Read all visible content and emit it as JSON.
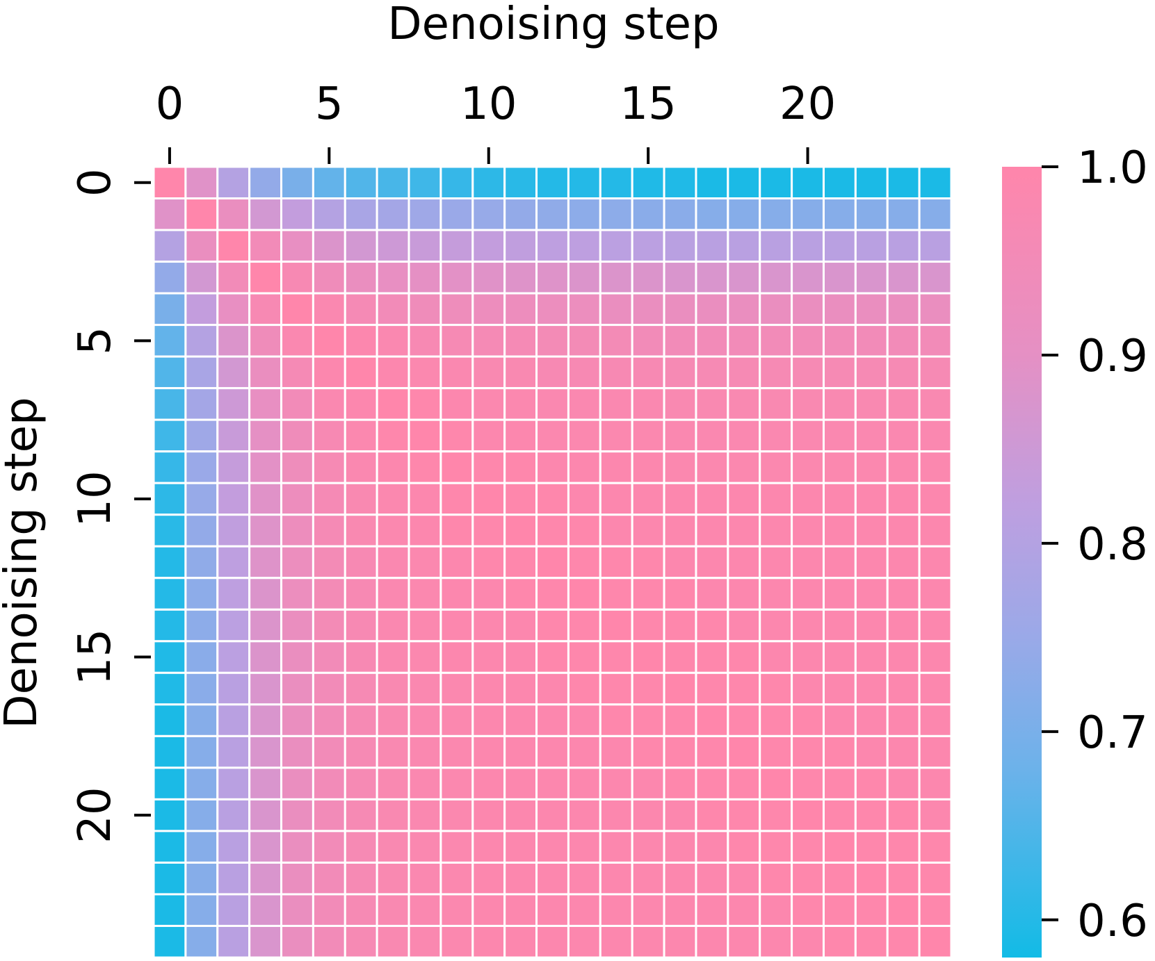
{
  "chart_data": {
    "type": "heatmap",
    "title": "",
    "xlabel": "Denoising step",
    "ylabel": "Denoising step",
    "x_axis_position": "top",
    "rows": 25,
    "cols": 25,
    "x_ticks": [
      0,
      5,
      10,
      15,
      20
    ],
    "y_ticks": [
      0,
      5,
      10,
      15,
      20
    ],
    "colorbar": {
      "position": "right",
      "ticks": [
        "1.0",
        "0.9",
        "0.8",
        "0.7",
        "0.6"
      ],
      "tick_values": [
        1.0,
        0.9,
        0.8,
        0.7,
        0.6
      ],
      "vmin": 0.58,
      "vmax": 1.0,
      "colormap": [
        {
          "value": 0.58,
          "color": "#12bbe6"
        },
        {
          "value": 0.68,
          "color": "#6cb2ea"
        },
        {
          "value": 0.75,
          "color": "#9aa9e8"
        },
        {
          "value": 0.82,
          "color": "#be9fe0"
        },
        {
          "value": 0.9,
          "color": "#e590c4"
        },
        {
          "value": 1.0,
          "color": "#ff86ab"
        }
      ]
    },
    "grid_line_color": "#ffffff",
    "row0_values": [
      1.0,
      0.89,
      0.8,
      0.74,
      0.7,
      0.67,
      0.65,
      0.64,
      0.63,
      0.62,
      0.61,
      0.605,
      0.6,
      0.6,
      0.6,
      0.595,
      0.595,
      0.59,
      0.59,
      0.59,
      0.59,
      0.59,
      0.59,
      0.59,
      0.59
    ],
    "values": [
      [
        1.0,
        0.89,
        0.8,
        0.74,
        0.7,
        0.67,
        0.65,
        0.64,
        0.63,
        0.62,
        0.61,
        0.605,
        0.6,
        0.6,
        0.6,
        0.595,
        0.595,
        0.59,
        0.59,
        0.59,
        0.59,
        0.59,
        0.59,
        0.59,
        0.59
      ],
      [
        0.89,
        1.0,
        0.92,
        0.86,
        0.83,
        0.8,
        0.78,
        0.77,
        0.76,
        0.75,
        0.745,
        0.74,
        0.735,
        0.73,
        0.73,
        0.725,
        0.725,
        0.72,
        0.72,
        0.72,
        0.72,
        0.72,
        0.72,
        0.72,
        0.72
      ],
      [
        0.8,
        0.92,
        1.0,
        0.95,
        0.91,
        0.88,
        0.86,
        0.85,
        0.84,
        0.835,
        0.83,
        0.825,
        0.82,
        0.82,
        0.815,
        0.815,
        0.81,
        0.81,
        0.81,
        0.81,
        0.81,
        0.81,
        0.81,
        0.81,
        0.81
      ],
      [
        0.74,
        0.86,
        0.95,
        1.0,
        0.97,
        0.94,
        0.92,
        0.91,
        0.9,
        0.895,
        0.89,
        0.885,
        0.885,
        0.88,
        0.88,
        0.88,
        0.875,
        0.875,
        0.875,
        0.875,
        0.875,
        0.875,
        0.875,
        0.875,
        0.875
      ],
      [
        0.7,
        0.83,
        0.91,
        0.97,
        1.0,
        0.98,
        0.96,
        0.95,
        0.94,
        0.935,
        0.93,
        0.93,
        0.925,
        0.925,
        0.92,
        0.92,
        0.92,
        0.92,
        0.92,
        0.92,
        0.92,
        0.92,
        0.92,
        0.92,
        0.92
      ],
      [
        0.67,
        0.8,
        0.88,
        0.94,
        0.98,
        1.0,
        0.99,
        0.98,
        0.97,
        0.965,
        0.96,
        0.96,
        0.955,
        0.955,
        0.955,
        0.95,
        0.95,
        0.95,
        0.95,
        0.95,
        0.95,
        0.95,
        0.95,
        0.95,
        0.95
      ],
      [
        0.65,
        0.78,
        0.86,
        0.92,
        0.96,
        0.99,
        1.0,
        0.99,
        0.985,
        0.98,
        0.975,
        0.975,
        0.97,
        0.97,
        0.97,
        0.97,
        0.965,
        0.965,
        0.965,
        0.965,
        0.965,
        0.965,
        0.965,
        0.965,
        0.965
      ],
      [
        0.64,
        0.77,
        0.85,
        0.91,
        0.95,
        0.98,
        0.99,
        1.0,
        0.995,
        0.99,
        0.985,
        0.985,
        0.98,
        0.98,
        0.98,
        0.98,
        0.975,
        0.975,
        0.975,
        0.975,
        0.975,
        0.975,
        0.975,
        0.975,
        0.975
      ],
      [
        0.63,
        0.76,
        0.84,
        0.9,
        0.94,
        0.97,
        0.985,
        0.995,
        1.0,
        0.995,
        0.99,
        0.99,
        0.985,
        0.985,
        0.985,
        0.985,
        0.98,
        0.98,
        0.98,
        0.98,
        0.98,
        0.98,
        0.98,
        0.98,
        0.98
      ],
      [
        0.62,
        0.75,
        0.835,
        0.895,
        0.935,
        0.965,
        0.98,
        0.99,
        0.995,
        1.0,
        0.995,
        0.995,
        0.99,
        0.99,
        0.99,
        0.99,
        0.985,
        0.985,
        0.985,
        0.985,
        0.985,
        0.985,
        0.985,
        0.985,
        0.985
      ],
      [
        0.61,
        0.745,
        0.83,
        0.89,
        0.93,
        0.96,
        0.975,
        0.985,
        0.99,
        0.995,
        1.0,
        0.995,
        0.995,
        0.99,
        0.99,
        0.99,
        0.99,
        0.99,
        0.99,
        0.99,
        0.99,
        0.99,
        0.99,
        0.99,
        0.99
      ],
      [
        0.605,
        0.74,
        0.825,
        0.885,
        0.93,
        0.96,
        0.975,
        0.985,
        0.99,
        0.995,
        0.995,
        1.0,
        0.995,
        0.995,
        0.99,
        0.99,
        0.99,
        0.99,
        0.99,
        0.99,
        0.99,
        0.99,
        0.99,
        0.99,
        0.99
      ],
      [
        0.6,
        0.735,
        0.82,
        0.885,
        0.925,
        0.955,
        0.97,
        0.98,
        0.985,
        0.99,
        0.995,
        0.995,
        1.0,
        0.995,
        0.995,
        0.995,
        0.99,
        0.99,
        0.99,
        0.99,
        0.99,
        0.99,
        0.99,
        0.99,
        0.99
      ],
      [
        0.6,
        0.73,
        0.82,
        0.88,
        0.925,
        0.955,
        0.97,
        0.98,
        0.985,
        0.99,
        0.99,
        0.995,
        0.995,
        1.0,
        0.995,
        0.995,
        0.995,
        0.99,
        0.99,
        0.99,
        0.99,
        0.99,
        0.99,
        0.99,
        0.99
      ],
      [
        0.6,
        0.73,
        0.815,
        0.88,
        0.92,
        0.955,
        0.97,
        0.98,
        0.985,
        0.99,
        0.99,
        0.99,
        0.995,
        0.995,
        1.0,
        0.995,
        0.995,
        0.995,
        0.99,
        0.99,
        0.99,
        0.99,
        0.99,
        0.99,
        0.99
      ],
      [
        0.595,
        0.725,
        0.815,
        0.88,
        0.92,
        0.95,
        0.97,
        0.98,
        0.985,
        0.99,
        0.99,
        0.99,
        0.995,
        0.995,
        0.995,
        1.0,
        0.995,
        0.995,
        0.995,
        0.99,
        0.99,
        0.99,
        0.99,
        0.99,
        0.99
      ],
      [
        0.595,
        0.725,
        0.81,
        0.875,
        0.92,
        0.95,
        0.965,
        0.975,
        0.98,
        0.985,
        0.99,
        0.99,
        0.99,
        0.995,
        0.995,
        0.995,
        1.0,
        0.995,
        0.995,
        0.995,
        0.99,
        0.99,
        0.99,
        0.99,
        0.99
      ],
      [
        0.59,
        0.72,
        0.81,
        0.875,
        0.92,
        0.95,
        0.965,
        0.975,
        0.98,
        0.985,
        0.99,
        0.99,
        0.99,
        0.99,
        0.995,
        0.995,
        0.995,
        1.0,
        0.995,
        0.995,
        0.995,
        0.99,
        0.99,
        0.99,
        0.99
      ],
      [
        0.59,
        0.72,
        0.81,
        0.875,
        0.92,
        0.95,
        0.965,
        0.975,
        0.98,
        0.985,
        0.99,
        0.99,
        0.99,
        0.99,
        0.99,
        0.995,
        0.995,
        0.995,
        1.0,
        0.995,
        0.995,
        0.995,
        0.99,
        0.99,
        0.99
      ],
      [
        0.59,
        0.72,
        0.81,
        0.875,
        0.92,
        0.95,
        0.965,
        0.975,
        0.98,
        0.985,
        0.99,
        0.99,
        0.99,
        0.99,
        0.99,
        0.99,
        0.995,
        0.995,
        0.995,
        1.0,
        0.995,
        0.995,
        0.995,
        0.99,
        0.99
      ],
      [
        0.59,
        0.72,
        0.81,
        0.875,
        0.92,
        0.95,
        0.965,
        0.975,
        0.98,
        0.985,
        0.99,
        0.99,
        0.99,
        0.99,
        0.99,
        0.99,
        0.99,
        0.995,
        0.995,
        0.995,
        1.0,
        0.995,
        0.995,
        0.995,
        0.99
      ],
      [
        0.59,
        0.72,
        0.81,
        0.875,
        0.92,
        0.95,
        0.965,
        0.975,
        0.98,
        0.985,
        0.99,
        0.99,
        0.99,
        0.99,
        0.99,
        0.99,
        0.99,
        0.99,
        0.995,
        0.995,
        0.995,
        1.0,
        0.995,
        0.995,
        0.995
      ],
      [
        0.59,
        0.72,
        0.81,
        0.875,
        0.92,
        0.95,
        0.965,
        0.975,
        0.98,
        0.985,
        0.99,
        0.99,
        0.99,
        0.99,
        0.99,
        0.99,
        0.99,
        0.99,
        0.99,
        0.995,
        0.995,
        0.995,
        1.0,
        0.995,
        0.995
      ],
      [
        0.59,
        0.72,
        0.81,
        0.875,
        0.92,
        0.95,
        0.965,
        0.975,
        0.98,
        0.985,
        0.99,
        0.99,
        0.99,
        0.99,
        0.99,
        0.99,
        0.99,
        0.99,
        0.99,
        0.99,
        0.995,
        0.995,
        0.995,
        1.0,
        0.995
      ],
      [
        0.59,
        0.72,
        0.81,
        0.875,
        0.92,
        0.95,
        0.965,
        0.975,
        0.98,
        0.985,
        0.99,
        0.99,
        0.99,
        0.99,
        0.99,
        0.99,
        0.99,
        0.99,
        0.99,
        0.99,
        0.99,
        0.995,
        0.995,
        0.995,
        1.0
      ]
    ]
  }
}
